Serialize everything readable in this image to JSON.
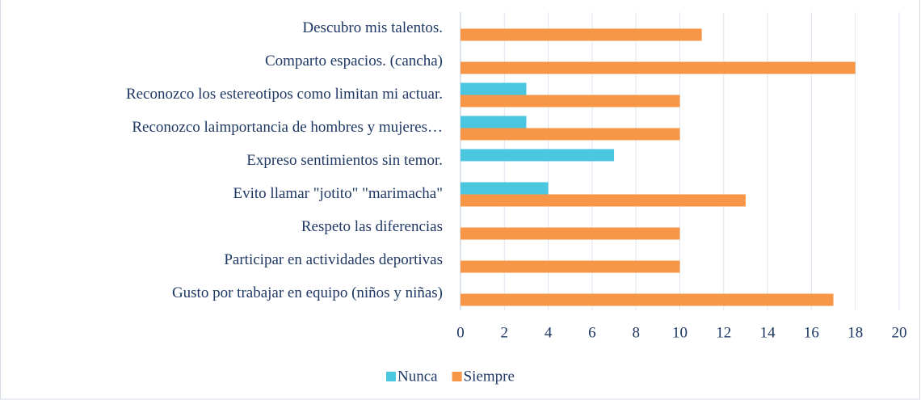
{
  "chart_data": {
    "type": "barh",
    "categories": [
      "Descubro mis talentos.",
      "Comparto espacios. (cancha)",
      "Reconozco los estereotipos como limitan mi actuar.",
      "Reconozco laimportancia de hombres y mujeres…",
      "Expreso sentimientos sin temor.",
      "Evito llamar \"jotito\" \"marimacha\"",
      "Respeto las diferencias",
      "Participar en actividades deportivas",
      "Gusto por trabajar en equipo (niños y niñas)"
    ],
    "series": [
      {
        "name": "Nunca",
        "color": "#4bc6df",
        "values": [
          0,
          0,
          3,
          3,
          7,
          4,
          0,
          0,
          0
        ]
      },
      {
        "name": "Siempre",
        "color": "#f79646",
        "values": [
          11,
          18,
          10,
          10,
          0,
          13,
          10,
          10,
          17
        ]
      }
    ],
    "xlim": [
      0,
      20
    ],
    "xticks": [
      0,
      2,
      4,
      6,
      8,
      10,
      12,
      14,
      16,
      18,
      20
    ],
    "grid": true,
    "legend": "bottom"
  }
}
